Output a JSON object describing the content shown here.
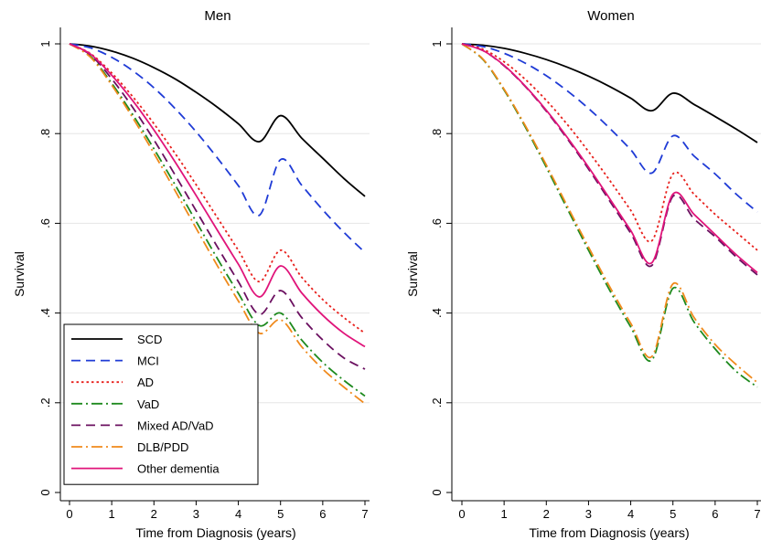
{
  "figure": {
    "ylabel": "Survival",
    "xlabel": "Time from Diagnosis (years)"
  },
  "legend": {
    "placement": "bottom-left of first panel"
  },
  "chart_data": [
    {
      "type": "line",
      "title": "Men",
      "xlabel": "Time from Diagnosis (years)",
      "ylabel": "Survival",
      "xlim": [
        0,
        7
      ],
      "ylim": [
        0,
        1
      ],
      "xticks": [
        "0",
        "1",
        "2",
        "3",
        "4",
        "5",
        "6",
        "7"
      ],
      "yticks": [
        "0",
        ".2",
        ".4",
        ".6",
        ".8",
        "1"
      ],
      "grid": "horizontal",
      "x": [
        0,
        0.5,
        1,
        1.5,
        2,
        2.5,
        3,
        3.5,
        4,
        4.5,
        5,
        5.5,
        6,
        6.5,
        7
      ],
      "series": [
        {
          "name": "SCD",
          "color": "#000000",
          "dash": "solid",
          "values": [
            1,
            0.995,
            0.984,
            0.968,
            0.947,
            0.922,
            0.892,
            0.859,
            0.822,
            0.782,
            0.84,
            0.79,
            0.745,
            0.7,
            0.66
          ]
        },
        {
          "name": "MCI",
          "color": "#1f3bd6",
          "dash": "long-dash",
          "values": [
            1,
            0.991,
            0.97,
            0.94,
            0.902,
            0.856,
            0.804,
            0.746,
            0.684,
            0.618,
            0.742,
            0.685,
            0.63,
            0.58,
            0.535
          ]
        },
        {
          "name": "AD",
          "color": "#e8201c",
          "dash": "dotted",
          "values": [
            1,
            0.978,
            0.935,
            0.882,
            0.822,
            0.756,
            0.686,
            0.613,
            0.54,
            0.47,
            0.54,
            0.48,
            0.43,
            0.39,
            0.355
          ]
        },
        {
          "name": "VaD",
          "color": "#1e8a1e",
          "dash": "dash-dot",
          "values": [
            1,
            0.972,
            0.912,
            0.842,
            0.766,
            0.686,
            0.604,
            0.522,
            0.444,
            0.372,
            0.4,
            0.34,
            0.29,
            0.25,
            0.215
          ]
        },
        {
          "name": "Mixed AD/VaD",
          "color": "#6b1060",
          "dash": "long-dash",
          "values": [
            1,
            0.975,
            0.922,
            0.858,
            0.786,
            0.708,
            0.628,
            0.548,
            0.47,
            0.397,
            0.45,
            0.39,
            0.34,
            0.3,
            0.275
          ]
        },
        {
          "name": "DLB/PDD",
          "color": "#f08a1c",
          "dash": "dash-dot",
          "values": [
            1,
            0.97,
            0.908,
            0.835,
            0.756,
            0.673,
            0.589,
            0.506,
            0.427,
            0.355,
            0.385,
            0.325,
            0.275,
            0.235,
            0.198
          ]
        },
        {
          "name": "Other dementia",
          "color": "#e0147a",
          "dash": "solid",
          "values": [
            1,
            0.977,
            0.93,
            0.873,
            0.808,
            0.737,
            0.662,
            0.585,
            0.509,
            0.436,
            0.505,
            0.445,
            0.395,
            0.355,
            0.325
          ]
        }
      ]
    },
    {
      "type": "line",
      "title": "Women",
      "xlabel": "Time from Diagnosis (years)",
      "ylabel": "Survival",
      "xlim": [
        0,
        7
      ],
      "ylim": [
        0,
        1
      ],
      "xticks": [
        "0",
        "1",
        "2",
        "3",
        "4",
        "5",
        "6",
        "7"
      ],
      "yticks": [
        "0",
        ".2",
        ".4",
        ".6",
        ".8",
        "1"
      ],
      "grid": "horizontal",
      "x": [
        0,
        0.5,
        1,
        1.5,
        2,
        2.5,
        3,
        3.5,
        4,
        4.5,
        5,
        5.5,
        6,
        6.5,
        7
      ],
      "series": [
        {
          "name": "SCD",
          "color": "#000000",
          "dash": "solid",
          "values": [
            1,
            0.997,
            0.99,
            0.979,
            0.965,
            0.948,
            0.928,
            0.905,
            0.879,
            0.851,
            0.89,
            0.865,
            0.838,
            0.81,
            0.78
          ]
        },
        {
          "name": "MCI",
          "color": "#1f3bd6",
          "dash": "long-dash",
          "values": [
            1,
            0.994,
            0.979,
            0.957,
            0.929,
            0.895,
            0.856,
            0.812,
            0.764,
            0.712,
            0.795,
            0.75,
            0.71,
            0.665,
            0.625
          ]
        },
        {
          "name": "AD",
          "color": "#e8201c",
          "dash": "dotted",
          "values": [
            1,
            0.988,
            0.96,
            0.921,
            0.874,
            0.82,
            0.76,
            0.696,
            0.629,
            0.561,
            0.71,
            0.665,
            0.62,
            0.58,
            0.54
          ]
        },
        {
          "name": "VaD",
          "color": "#1e8a1e",
          "dash": "dash-dot",
          "values": [
            1,
            0.965,
            0.897,
            0.815,
            0.725,
            0.632,
            0.54,
            0.451,
            0.369,
            0.295,
            0.455,
            0.38,
            0.32,
            0.27,
            0.235
          ]
        },
        {
          "name": "Mixed AD/VaD",
          "color": "#6b1060",
          "dash": "long-dash",
          "values": [
            1,
            0.985,
            0.951,
            0.905,
            0.85,
            0.788,
            0.721,
            0.65,
            0.578,
            0.506,
            0.66,
            0.61,
            0.57,
            0.525,
            0.485
          ]
        },
        {
          "name": "DLB/PDD",
          "color": "#f08a1c",
          "dash": "dash-dot",
          "values": [
            1,
            0.966,
            0.899,
            0.818,
            0.73,
            0.638,
            0.547,
            0.459,
            0.377,
            0.303,
            0.465,
            0.39,
            0.33,
            0.285,
            0.245
          ]
        },
        {
          "name": "Other dementia",
          "color": "#e0147a",
          "dash": "solid",
          "values": [
            1,
            0.985,
            0.952,
            0.906,
            0.852,
            0.791,
            0.725,
            0.655,
            0.584,
            0.512,
            0.665,
            0.62,
            0.575,
            0.53,
            0.49
          ]
        }
      ]
    }
  ]
}
